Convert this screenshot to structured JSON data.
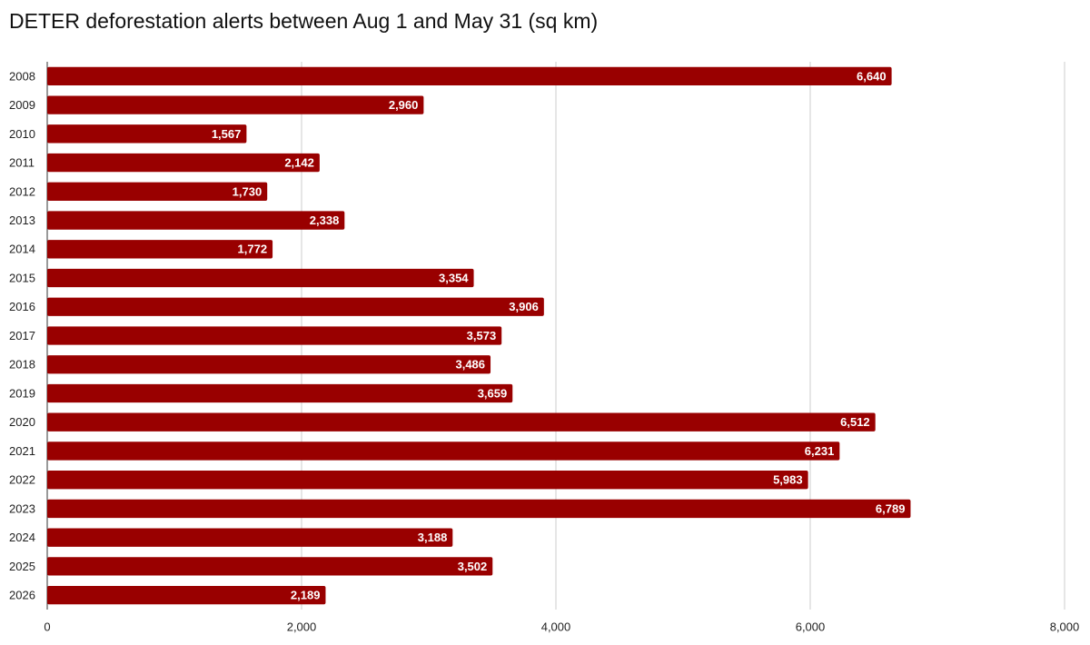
{
  "chart_data": {
    "type": "bar",
    "orientation": "horizontal",
    "title": "DETER deforestation alerts between Aug 1 and May 31 (sq km)",
    "categories": [
      "2008",
      "2009",
      "2010",
      "2011",
      "2012",
      "2013",
      "2014",
      "2015",
      "2016",
      "2017",
      "2018",
      "2019",
      "2020",
      "2021",
      "2022",
      "2023",
      "2024",
      "2025",
      "2026"
    ],
    "values": [
      6640,
      2960,
      1567,
      2142,
      1730,
      2338,
      1772,
      3354,
      3906,
      3573,
      3486,
      3659,
      6512,
      6231,
      5983,
      6789,
      3188,
      3502,
      2189
    ],
    "value_labels": [
      "6,640",
      "2,960",
      "1,567",
      "2,142",
      "1,730",
      "2,338",
      "1,772",
      "3,354",
      "3,906",
      "3,573",
      "3,486",
      "3,659",
      "6,512",
      "6,231",
      "5,983",
      "6,789",
      "3,188",
      "3,502",
      "2,189"
    ],
    "color": "#990000",
    "xlim": [
      0,
      8000
    ],
    "xticks": [
      0,
      {
        "value": 2000,
        "label": "2,000"
      },
      {
        "value": 4000,
        "label": "4,000"
      },
      {
        "value": 6000,
        "label": "6,000"
      },
      {
        "value": 8000,
        "label": "8,000"
      }
    ],
    "grid": true
  }
}
